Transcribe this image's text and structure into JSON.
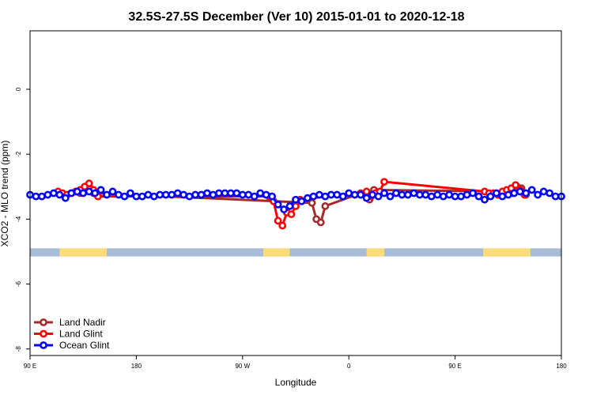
{
  "chart_data": {
    "type": "line",
    "title": "32.5S-27.5S December (Ver 10)   2015-01-01 to 2020-12-18",
    "xlabel": "Longitude",
    "ylabel": "XCO2 - MLO trend (ppm)",
    "xlim": [
      90,
      450
    ],
    "ylim": [
      -8.2,
      1.8
    ],
    "x_ticks": [
      {
        "value": 90,
        "label": "90 E"
      },
      {
        "value": 162,
        "label": "180"
      },
      {
        "value": 234,
        "label": "90 W"
      },
      {
        "value": 306,
        "label": "0"
      },
      {
        "value": 378,
        "label": "90 E"
      },
      {
        "value": 450,
        "label": "180"
      }
    ],
    "y_ticks": [
      {
        "value": 0,
        "label": "0"
      },
      {
        "value": -2,
        "label": "-2"
      },
      {
        "value": -4,
        "label": "-4"
      },
      {
        "value": -6,
        "label": "-6"
      },
      {
        "value": -8,
        "label": "-8"
      }
    ],
    "grid": false,
    "legend_position": "bottom-left",
    "land_band": {
      "y_range": [
        -5.15,
        -4.9
      ],
      "ocean_color": "#a8bcd8",
      "land_color": "#fadc78",
      "land_segments": [
        [
          110,
          142
        ],
        [
          248,
          266
        ],
        [
          318,
          330
        ],
        [
          397,
          429
        ]
      ]
    },
    "series": [
      {
        "name": "Land Nadir",
        "color": "#a52a2a",
        "x": [
          118,
          121,
          124,
          127,
          130,
          133,
          281,
          284,
          287,
          290,
          314,
          317,
          320,
          323,
          414,
          417,
          420,
          423,
          426
        ],
        "y": [
          -3.2,
          -3.15,
          -3.2,
          -3.1,
          -3.0,
          -3.2,
          -3.5,
          -4.0,
          -4.1,
          -3.6,
          -3.2,
          -3.25,
          -3.4,
          -3.1,
          -3.15,
          -3.2,
          -3.0,
          -3.05,
          -3.25
        ]
      },
      {
        "name": "Land Glint",
        "color": "#ff0000",
        "x": [
          109,
          112,
          115,
          118,
          121,
          124,
          127,
          130,
          133,
          136,
          252,
          255,
          258,
          261,
          264,
          267,
          270,
          273,
          318,
          321,
          324,
          327,
          330,
          398,
          401,
          404,
          407,
          410,
          413,
          416,
          419,
          422,
          425
        ],
        "y": [
          -3.15,
          -3.2,
          -3.25,
          -3.2,
          -3.15,
          -3.1,
          -3.0,
          -2.9,
          -3.1,
          -3.3,
          -3.3,
          -3.45,
          -4.05,
          -4.2,
          -3.8,
          -3.85,
          -3.6,
          -3.4,
          -3.15,
          -3.3,
          -3.2,
          -3.15,
          -2.85,
          -3.15,
          -3.2,
          -3.2,
          -3.25,
          -3.15,
          -3.1,
          -3.05,
          -2.95,
          -3.1,
          -3.25
        ]
      },
      {
        "name": "Ocean Glint",
        "color": "#0000ff",
        "x": [
          90,
          94,
          98,
          102,
          106,
          110,
          114,
          118,
          122,
          126,
          130,
          134,
          138,
          142,
          146,
          150,
          154,
          158,
          162,
          166,
          170,
          174,
          178,
          182,
          186,
          190,
          194,
          198,
          202,
          206,
          210,
          214,
          218,
          222,
          226,
          230,
          234,
          238,
          242,
          246,
          250,
          254,
          258,
          262,
          266,
          270,
          274,
          278,
          282,
          286,
          290,
          294,
          298,
          302,
          306,
          310,
          314,
          318,
          322,
          326,
          330,
          334,
          338,
          342,
          346,
          350,
          354,
          358,
          362,
          366,
          370,
          374,
          378,
          382,
          386,
          390,
          394,
          398,
          402,
          406,
          410,
          414,
          418,
          422,
          426,
          430,
          434,
          438,
          442,
          446,
          450
        ],
        "y": [
          -3.25,
          -3.3,
          -3.3,
          -3.25,
          -3.2,
          -3.25,
          -3.35,
          -3.2,
          -3.15,
          -3.2,
          -3.15,
          -3.2,
          -3.1,
          -3.25,
          -3.15,
          -3.25,
          -3.3,
          -3.2,
          -3.3,
          -3.3,
          -3.25,
          -3.3,
          -3.25,
          -3.25,
          -3.25,
          -3.2,
          -3.25,
          -3.3,
          -3.25,
          -3.25,
          -3.2,
          -3.25,
          -3.2,
          -3.2,
          -3.2,
          -3.2,
          -3.25,
          -3.25,
          -3.3,
          -3.2,
          -3.25,
          -3.3,
          -3.55,
          -3.7,
          -3.6,
          -3.4,
          -3.45,
          -3.35,
          -3.3,
          -3.25,
          -3.3,
          -3.25,
          -3.25,
          -3.3,
          -3.2,
          -3.25,
          -3.25,
          -3.35,
          -3.25,
          -3.3,
          -3.2,
          -3.3,
          -3.2,
          -3.25,
          -3.25,
          -3.2,
          -3.25,
          -3.25,
          -3.3,
          -3.25,
          -3.3,
          -3.25,
          -3.3,
          -3.3,
          -3.25,
          -3.2,
          -3.3,
          -3.4,
          -3.3,
          -3.2,
          -3.3,
          -3.25,
          -3.2,
          -3.15,
          -3.2,
          -3.1,
          -3.25,
          -3.15,
          -3.2,
          -3.3,
          -3.3
        ]
      }
    ]
  }
}
